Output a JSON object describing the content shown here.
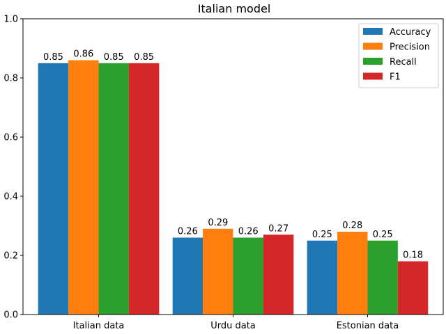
{
  "chart_data": {
    "type": "bar",
    "title": "Italian model",
    "xlabel": "",
    "ylabel": "",
    "categories": [
      "Italian data",
      "Urdu data",
      "Estonian data"
    ],
    "series": [
      {
        "name": "Accuracy",
        "color": "#1f77b4",
        "values": [
          0.85,
          0.26,
          0.25
        ],
        "labels": [
          "0.85",
          "0.26",
          "0.25"
        ]
      },
      {
        "name": "Precision",
        "color": "#ff7f0e",
        "values": [
          0.86,
          0.29,
          0.28
        ],
        "labels": [
          "0.86",
          "0.29",
          "0.28"
        ]
      },
      {
        "name": "Recall",
        "color": "#2ca02c",
        "values": [
          0.85,
          0.26,
          0.25
        ],
        "labels": [
          "0.85",
          "0.26",
          "0.25"
        ]
      },
      {
        "name": "F1",
        "color": "#d62728",
        "values": [
          0.85,
          0.27,
          0.18
        ],
        "labels": [
          "0.85",
          "0.27",
          "0.18"
        ]
      }
    ],
    "ylim": [
      0,
      1.0
    ],
    "yticks": [
      0.0,
      0.2,
      0.4,
      0.6,
      0.8,
      1.0
    ],
    "ytick_labels": [
      "0.0",
      "0.2",
      "0.4",
      "0.6",
      "0.8",
      "1.0"
    ],
    "grid": false,
    "legend_position": "top-right"
  }
}
